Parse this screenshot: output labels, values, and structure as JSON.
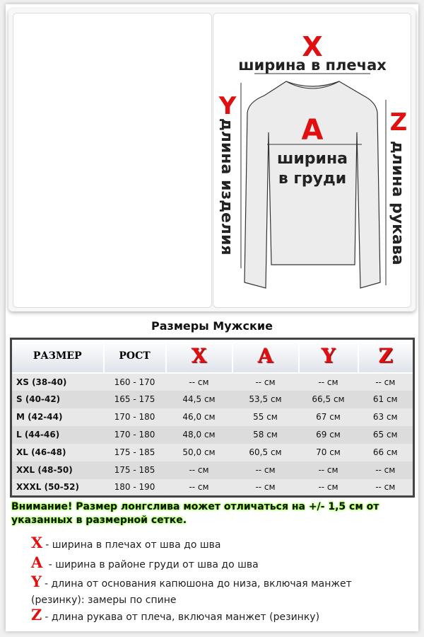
{
  "diagram": {
    "x": "X",
    "x_label": "ширина в плечах",
    "a": "A",
    "a_label1": "ширина",
    "a_label2": "в груди",
    "y": "Y",
    "y_label": "длина изделия",
    "z": "Z",
    "z_label": "длина рукава"
  },
  "title": "Размеры Мужские",
  "table": {
    "headers": [
      "РАЗМЕР",
      "РОСТ",
      "X",
      "A",
      "Y",
      "Z"
    ],
    "rows": [
      [
        "XS (38-40)",
        "160 - 170",
        "--  см",
        "-- см",
        "-- см",
        "-- см"
      ],
      [
        "S (40-42)",
        "165 - 175",
        "44,5 см",
        "53,5 см",
        "66,5 см",
        "61 см"
      ],
      [
        "M (42-44)",
        "170 - 180",
        "46,0 см",
        "55 см",
        "67 см",
        "63 см"
      ],
      [
        "L (44-46)",
        "170 - 180",
        "48,0 см",
        "58 см",
        "69 см",
        "65 см"
      ],
      [
        "XL (46-48)",
        "175 - 185",
        "50,0 см",
        "60,5 см",
        "70 см",
        "66 см"
      ],
      [
        "XXL (48-50)",
        "175 - 185",
        "-- см",
        "-- см",
        "-- см",
        "-- см"
      ],
      [
        "XXXL (50-52)",
        "180 - 190",
        "-- см",
        "-- см",
        "-- см",
        "-- см"
      ]
    ]
  },
  "warning": "Внимание! Размер лонгслива может отличаться на +/- 1,5 см от указанных в размерной сетке.",
  "legend": [
    {
      "letter": "X",
      "text": "- ширина в плечах от шва до шва"
    },
    {
      "letter": "A",
      "text": " - ширина в районе груди от шва до шва"
    },
    {
      "letter": "Y",
      "text": "- длина от основания капюшона до низа, включая манжет (резинку): замеры по спине"
    },
    {
      "letter": "Z",
      "text": "- длина рукава от плеча, включая манжет (резинку)"
    }
  ],
  "colors": {
    "accent": "#e01010",
    "highlight": "#77ff00"
  }
}
